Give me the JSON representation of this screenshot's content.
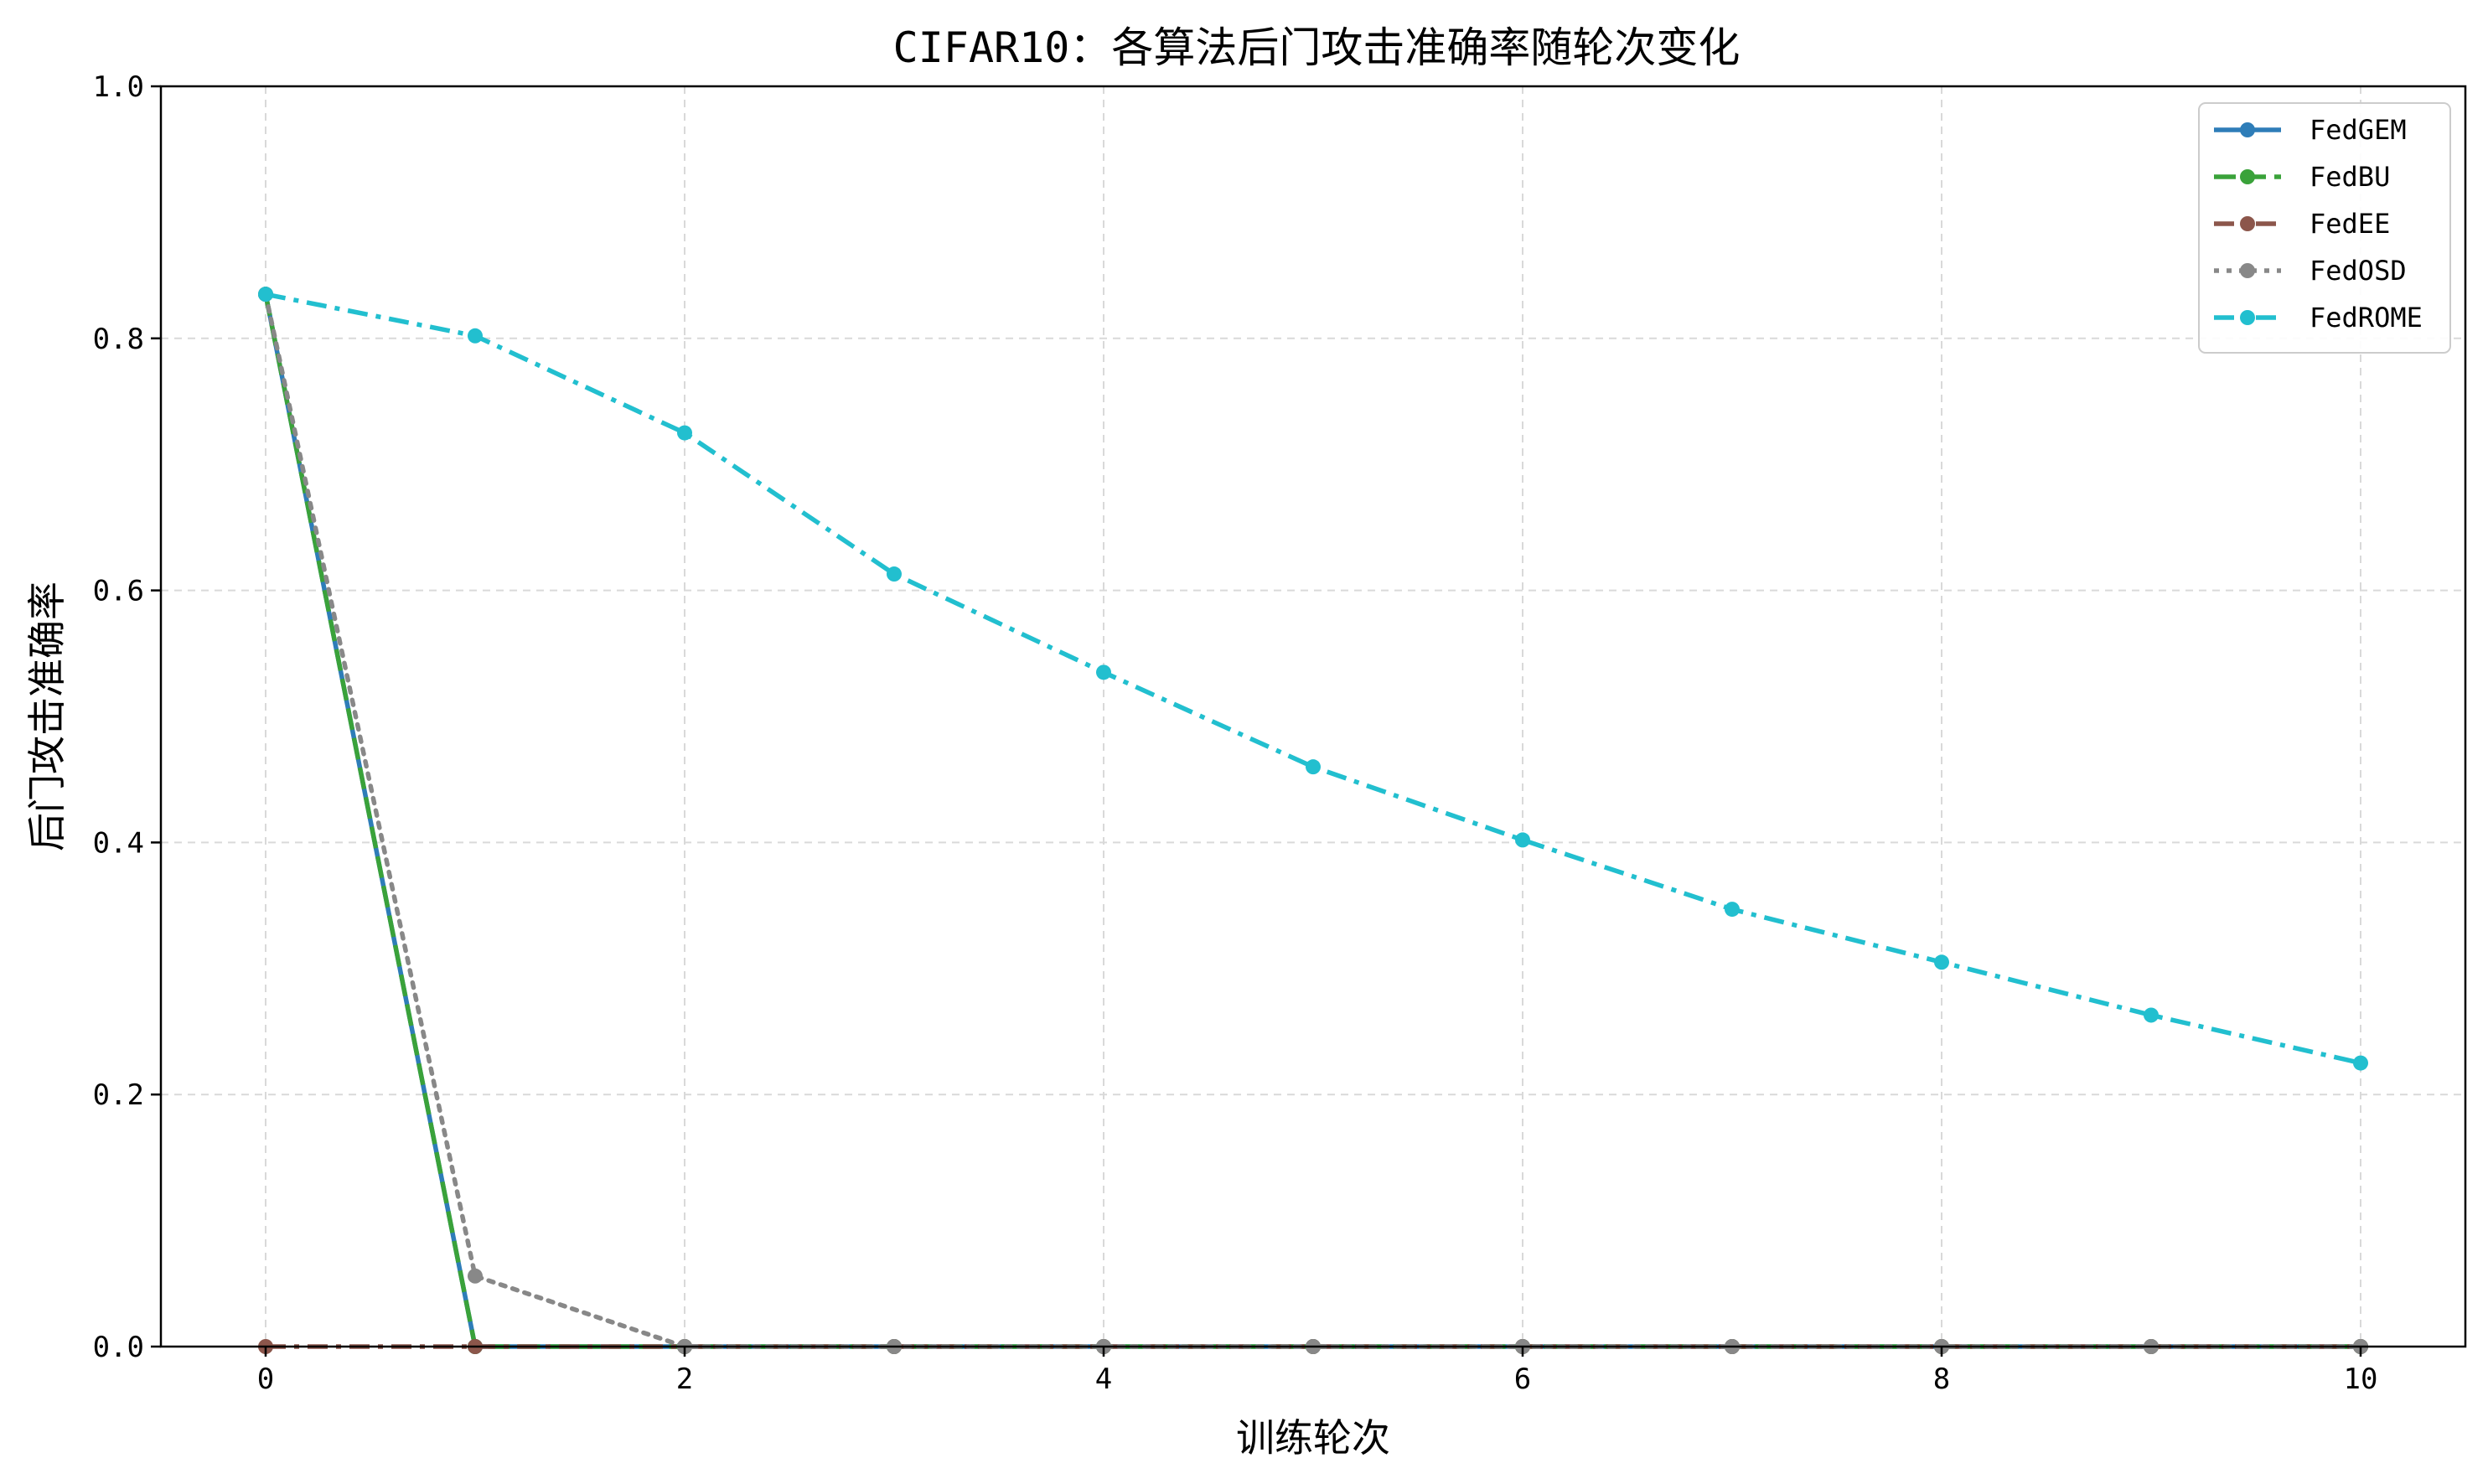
{
  "chart_data": {
    "type": "line",
    "title": "CIFAR10：各算法后门攻击准确率随轮次变化",
    "xlabel": "训练轮次",
    "ylabel": "后门攻击准确率",
    "xlim": [
      -0.5,
      10.5
    ],
    "ylim": [
      0.0,
      1.0
    ],
    "xticks": [
      0,
      2,
      4,
      6,
      8,
      10
    ],
    "yticks": [
      0.0,
      0.2,
      0.4,
      0.6,
      0.8,
      1.0
    ],
    "xtick_labels": [
      "0",
      "2",
      "4",
      "6",
      "8",
      "10"
    ],
    "ytick_labels": [
      "0.0",
      "0.2",
      "0.4",
      "0.6",
      "0.8",
      "1.0"
    ],
    "grid": true,
    "legend_position": "top-right",
    "x": [
      0,
      1,
      2,
      3,
      4,
      5,
      6,
      7,
      8,
      9,
      10
    ],
    "series": [
      {
        "name": "FedGEM",
        "color": "#2e7db8",
        "dash": "solid",
        "values": [
          0.835,
          0.0,
          0.0,
          0.0,
          0.0,
          0.0,
          0.0,
          0.0,
          0.0,
          0.0,
          0.0
        ]
      },
      {
        "name": "FedBU",
        "color": "#3aa23a",
        "dash": "dashed",
        "values": [
          0.835,
          0.0,
          0.0,
          0.0,
          0.0,
          0.0,
          0.0,
          0.0,
          0.0,
          0.0,
          0.0
        ]
      },
      {
        "name": "FedEE",
        "color": "#8c564b",
        "dash": "dashdot",
        "values": [
          0.0,
          0.0,
          0.0,
          0.0,
          0.0,
          0.0,
          0.0,
          0.0,
          0.0,
          0.0,
          0.0
        ]
      },
      {
        "name": "FedOSD",
        "color": "#888888",
        "dash": "dotted",
        "values": [
          0.835,
          0.056,
          0.0,
          0.0,
          0.0,
          0.0,
          0.0,
          0.0,
          0.0,
          0.0,
          0.0
        ]
      },
      {
        "name": "FedROME",
        "color": "#22bfcf",
        "dash": "dashdot",
        "values": [
          0.835,
          0.802,
          0.725,
          0.613,
          0.535,
          0.46,
          0.402,
          0.347,
          0.305,
          0.263,
          0.225
        ]
      }
    ]
  }
}
